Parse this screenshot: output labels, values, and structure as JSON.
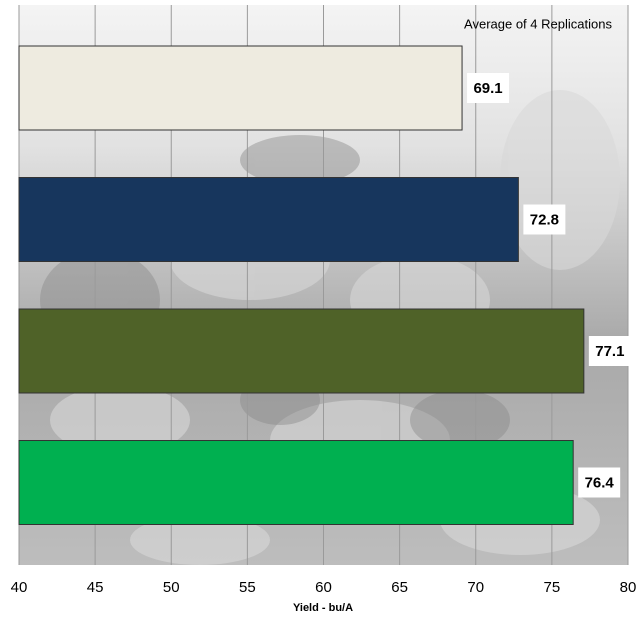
{
  "chart_data": {
    "type": "hbar",
    "annotation": "Average of 4 Replications",
    "xlabel": "Yield - bu/A",
    "values": [
      69.1,
      72.8,
      77.1,
      76.4
    ],
    "colors": [
      "#eeebe0",
      "#17365d",
      "#4f6228",
      "#00b050"
    ],
    "xlim": [
      40,
      80
    ],
    "xticks": [
      40,
      45,
      50,
      55,
      60,
      65,
      70,
      75,
      80
    ],
    "grid": true
  }
}
